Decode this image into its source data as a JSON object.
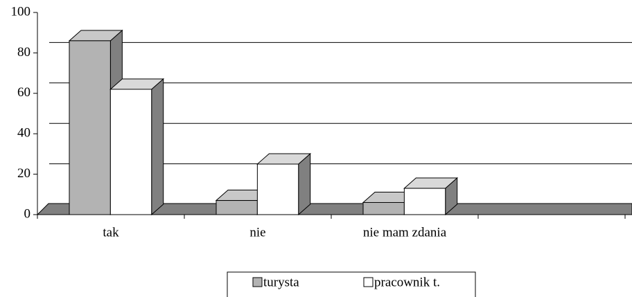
{
  "chart_data": {
    "type": "bar3d",
    "categories": [
      "tak",
      "nie",
      "nie mam zdania",
      null
    ],
    "series": [
      {
        "name": "turysta",
        "color": "#b3b3b3",
        "values": [
          86,
          7,
          6,
          null
        ]
      },
      {
        "name": "pracownik t.",
        "color": "#ffffff",
        "values": [
          62,
          25,
          13,
          null
        ]
      }
    ],
    "ylim": [
      0,
      100
    ],
    "yticks": [
      0,
      20,
      40,
      60,
      80,
      100
    ],
    "grid": true,
    "legend": "bottom"
  }
}
